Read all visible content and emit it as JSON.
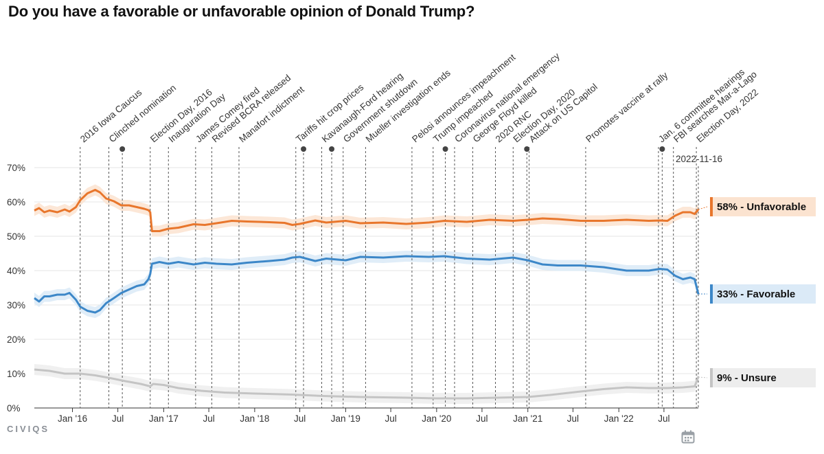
{
  "title": "Do you have a favorable or unfavorable opinion of Donald Trump?",
  "brand": "CIVIQS",
  "calendar_icon": "calendar-icon",
  "chart_data": {
    "type": "line",
    "x_range": [
      "2015-08-01",
      "2022-11-16"
    ],
    "ylim": [
      0,
      70
    ],
    "y_ticks": [
      0,
      10,
      20,
      30,
      40,
      50,
      60,
      70
    ],
    "y_tick_labels": [
      "0%",
      "10%",
      "20%",
      "30%",
      "40%",
      "50%",
      "60%",
      "70%"
    ],
    "x_ticks": [
      {
        "date": "2016-01-01",
        "label": "Jan '16"
      },
      {
        "date": "2016-07-01",
        "label": "Jul"
      },
      {
        "date": "2017-01-01",
        "label": "Jan '17"
      },
      {
        "date": "2017-07-01",
        "label": "Jul"
      },
      {
        "date": "2018-01-01",
        "label": "Jan '18"
      },
      {
        "date": "2018-07-01",
        "label": "Jul"
      },
      {
        "date": "2019-01-01",
        "label": "Jan '19"
      },
      {
        "date": "2019-07-01",
        "label": "Jul"
      },
      {
        "date": "2020-01-01",
        "label": "Jan '20"
      },
      {
        "date": "2020-07-01",
        "label": "Jul"
      },
      {
        "date": "2021-01-01",
        "label": "Jan '21"
      },
      {
        "date": "2021-07-01",
        "label": "Jul"
      },
      {
        "date": "2022-01-01",
        "label": "Jan '22"
      },
      {
        "date": "2022-07-01",
        "label": "Jul"
      }
    ],
    "current_date_label": "2022-11-16",
    "series": [
      {
        "name": "Unfavorable",
        "end_label": "58% - Unfavorable",
        "color": "#e8762c",
        "band_color": "#fbe3d0",
        "points": [
          [
            "2015-08-01",
            57.5
          ],
          [
            "2015-08-20",
            58.2
          ],
          [
            "2015-09-10",
            57.0
          ],
          [
            "2015-10-01",
            57.5
          ],
          [
            "2015-11-01",
            57.0
          ],
          [
            "2015-12-01",
            57.8
          ],
          [
            "2015-12-20",
            57.2
          ],
          [
            "2016-01-15",
            58.5
          ],
          [
            "2016-02-01",
            60.5
          ],
          [
            "2016-03-01",
            62.5
          ],
          [
            "2016-04-01",
            63.5
          ],
          [
            "2016-04-20",
            62.8
          ],
          [
            "2016-05-15",
            61.0
          ],
          [
            "2016-06-15",
            60.2
          ],
          [
            "2016-07-15",
            59.0
          ],
          [
            "2016-08-15",
            59.0
          ],
          [
            "2016-09-15",
            58.5
          ],
          [
            "2016-10-15",
            58.0
          ],
          [
            "2016-11-01",
            57.6
          ],
          [
            "2016-11-08",
            57.0
          ],
          [
            "2016-11-15",
            51.5
          ],
          [
            "2016-12-15",
            51.5
          ],
          [
            "2017-01-20",
            52.2
          ],
          [
            "2017-03-01",
            52.5
          ],
          [
            "2017-05-01",
            53.5
          ],
          [
            "2017-06-15",
            53.3
          ],
          [
            "2017-08-01",
            53.8
          ],
          [
            "2017-10-01",
            54.5
          ],
          [
            "2017-12-01",
            54.3
          ],
          [
            "2018-03-01",
            54.1
          ],
          [
            "2018-05-01",
            53.9
          ],
          [
            "2018-06-01",
            53.3
          ],
          [
            "2018-07-01",
            53.6
          ],
          [
            "2018-09-01",
            54.6
          ],
          [
            "2018-10-15",
            54.0
          ],
          [
            "2019-01-01",
            54.5
          ],
          [
            "2019-03-01",
            53.8
          ],
          [
            "2019-06-01",
            54.0
          ],
          [
            "2019-09-01",
            53.6
          ],
          [
            "2019-12-01",
            54.0
          ],
          [
            "2020-02-01",
            54.5
          ],
          [
            "2020-05-01",
            54.2
          ],
          [
            "2020-08-01",
            54.8
          ],
          [
            "2020-11-03",
            54.5
          ],
          [
            "2021-01-01",
            54.8
          ],
          [
            "2021-03-01",
            55.2
          ],
          [
            "2021-05-01",
            55.0
          ],
          [
            "2021-08-01",
            54.5
          ],
          [
            "2021-11-01",
            54.5
          ],
          [
            "2022-02-01",
            54.8
          ],
          [
            "2022-05-01",
            54.5
          ],
          [
            "2022-06-15",
            54.6
          ],
          [
            "2022-07-15",
            54.5
          ],
          [
            "2022-08-15",
            56.0
          ],
          [
            "2022-09-15",
            57.0
          ],
          [
            "2022-10-15",
            57.0
          ],
          [
            "2022-11-01",
            56.5
          ],
          [
            "2022-11-16",
            57.8
          ]
        ]
      },
      {
        "name": "Favorable",
        "end_label": "33% - Favorable",
        "color": "#3c87c8",
        "band_color": "#dbeaf7",
        "points": [
          [
            "2015-08-01",
            32.0
          ],
          [
            "2015-08-20",
            31.0
          ],
          [
            "2015-09-10",
            32.5
          ],
          [
            "2015-10-01",
            32.5
          ],
          [
            "2015-11-01",
            33.0
          ],
          [
            "2015-12-01",
            33.0
          ],
          [
            "2015-12-20",
            33.5
          ],
          [
            "2016-01-15",
            31.5
          ],
          [
            "2016-02-01",
            29.5
          ],
          [
            "2016-03-01",
            28.3
          ],
          [
            "2016-04-01",
            27.8
          ],
          [
            "2016-04-20",
            28.5
          ],
          [
            "2016-05-15",
            30.5
          ],
          [
            "2016-06-15",
            32.0
          ],
          [
            "2016-07-15",
            33.5
          ],
          [
            "2016-08-15",
            34.5
          ],
          [
            "2016-09-15",
            35.5
          ],
          [
            "2016-10-15",
            36.0
          ],
          [
            "2016-11-01",
            37.5
          ],
          [
            "2016-11-08",
            39.0
          ],
          [
            "2016-11-15",
            42.0
          ],
          [
            "2016-12-15",
            42.5
          ],
          [
            "2017-01-20",
            42.0
          ],
          [
            "2017-03-01",
            42.5
          ],
          [
            "2017-05-01",
            41.8
          ],
          [
            "2017-06-15",
            42.3
          ],
          [
            "2017-08-01",
            42.0
          ],
          [
            "2017-10-01",
            41.8
          ],
          [
            "2017-12-01",
            42.3
          ],
          [
            "2018-03-01",
            42.8
          ],
          [
            "2018-05-01",
            43.2
          ],
          [
            "2018-06-01",
            43.8
          ],
          [
            "2018-07-01",
            44.0
          ],
          [
            "2018-09-01",
            42.8
          ],
          [
            "2018-10-15",
            43.5
          ],
          [
            "2019-01-01",
            43.0
          ],
          [
            "2019-03-01",
            44.0
          ],
          [
            "2019-06-01",
            43.8
          ],
          [
            "2019-09-01",
            44.2
          ],
          [
            "2019-12-01",
            44.0
          ],
          [
            "2020-02-01",
            44.2
          ],
          [
            "2020-05-01",
            43.5
          ],
          [
            "2020-08-01",
            43.2
          ],
          [
            "2020-11-03",
            43.8
          ],
          [
            "2021-01-01",
            43.0
          ],
          [
            "2021-03-01",
            41.8
          ],
          [
            "2021-05-01",
            41.5
          ],
          [
            "2021-08-01",
            41.5
          ],
          [
            "2021-11-01",
            41.0
          ],
          [
            "2022-02-01",
            40.0
          ],
          [
            "2022-05-01",
            40.0
          ],
          [
            "2022-06-15",
            40.5
          ],
          [
            "2022-07-15",
            40.3
          ],
          [
            "2022-08-15",
            38.5
          ],
          [
            "2022-09-15",
            37.5
          ],
          [
            "2022-10-15",
            38.0
          ],
          [
            "2022-11-01",
            37.5
          ],
          [
            "2022-11-16",
            33.2
          ]
        ]
      },
      {
        "name": "Unsure",
        "end_label": "9% - Unsure",
        "color": "#c4c4c4",
        "band_color": "#ededed",
        "points": [
          [
            "2015-08-01",
            11.2
          ],
          [
            "2015-10-01",
            10.8
          ],
          [
            "2015-12-01",
            10.0
          ],
          [
            "2016-02-01",
            10.0
          ],
          [
            "2016-04-01",
            9.5
          ],
          [
            "2016-06-01",
            8.7
          ],
          [
            "2016-08-01",
            7.8
          ],
          [
            "2016-10-01",
            7.0
          ],
          [
            "2016-11-08",
            6.3
          ],
          [
            "2016-11-20",
            7.0
          ],
          [
            "2017-01-01",
            6.7
          ],
          [
            "2017-03-01",
            5.8
          ],
          [
            "2017-06-01",
            5.0
          ],
          [
            "2017-09-01",
            4.5
          ],
          [
            "2018-01-01",
            4.2
          ],
          [
            "2018-06-01",
            3.9
          ],
          [
            "2018-10-01",
            3.5
          ],
          [
            "2019-03-01",
            3.2
          ],
          [
            "2019-09-01",
            3.0
          ],
          [
            "2020-01-01",
            2.8
          ],
          [
            "2020-05-01",
            2.8
          ],
          [
            "2020-09-01",
            3.0
          ],
          [
            "2021-01-01",
            3.2
          ],
          [
            "2021-04-01",
            3.8
          ],
          [
            "2021-08-01",
            4.8
          ],
          [
            "2021-11-01",
            5.5
          ],
          [
            "2022-02-01",
            6.0
          ],
          [
            "2022-05-01",
            5.8
          ],
          [
            "2022-07-15",
            5.8
          ],
          [
            "2022-09-15",
            6.0
          ],
          [
            "2022-11-01",
            6.3
          ],
          [
            "2022-11-16",
            9.0
          ]
        ]
      }
    ],
    "events": [
      {
        "label": "2016 Iowa Caucus",
        "date": "2016-02-01",
        "marker": false
      },
      {
        "label": "Clinched nomination",
        "date": "2016-05-26",
        "marker": false
      },
      {
        "label": "",
        "date": "2016-07-19",
        "marker": true
      },
      {
        "label": "Election Day, 2016",
        "date": "2016-11-08",
        "marker": false
      },
      {
        "label": "Inauguration Day",
        "date": "2017-01-20",
        "marker": false
      },
      {
        "label": "James Comey fired",
        "date": "2017-05-09",
        "marker": false
      },
      {
        "label": "Revised BCRA released",
        "date": "2017-07-13",
        "marker": false
      },
      {
        "label": "Manafort indictment",
        "date": "2017-10-30",
        "marker": false
      },
      {
        "label": "Tariffs hit crop prices",
        "date": "2018-06-15",
        "marker": false
      },
      {
        "label": "",
        "date": "2018-07-16",
        "marker": true
      },
      {
        "label": "Kavanaugh-Ford hearing",
        "date": "2018-09-27",
        "marker": false
      },
      {
        "label": "",
        "date": "2018-11-06",
        "marker": true
      },
      {
        "label": "Government shutdown",
        "date": "2018-12-22",
        "marker": false
      },
      {
        "label": "Mueller investigation ends",
        "date": "2019-03-22",
        "marker": false
      },
      {
        "label": "Pelosi announces impeachment",
        "date": "2019-09-24",
        "marker": false
      },
      {
        "label": "Trump impeached",
        "date": "2019-12-18",
        "marker": false
      },
      {
        "label": "",
        "date": "2020-02-05",
        "marker": true
      },
      {
        "label": "Coronavirus national emergency",
        "date": "2020-03-13",
        "marker": false
      },
      {
        "label": "George Floyd killed",
        "date": "2020-05-25",
        "marker": false
      },
      {
        "label": "2020 RNC",
        "date": "2020-08-24",
        "marker": false
      },
      {
        "label": "Election Day, 2020",
        "date": "2020-11-03",
        "marker": false
      },
      {
        "label": "",
        "date": "2020-12-28",
        "marker": true
      },
      {
        "label": "Attack on US Capitol",
        "date": "2021-01-06",
        "marker": false
      },
      {
        "label": "Promotes vaccine at rally",
        "date": "2021-08-21",
        "marker": false
      },
      {
        "label": "Jan. 6 committee hearings",
        "date": "2022-06-09",
        "marker": false
      },
      {
        "label": "",
        "date": "2022-06-24",
        "marker": true
      },
      {
        "label": "FBI searches Mar-a-Lago",
        "date": "2022-08-08",
        "marker": false
      },
      {
        "label": "Election Day, 2022",
        "date": "2022-11-08",
        "marker": false
      }
    ]
  }
}
